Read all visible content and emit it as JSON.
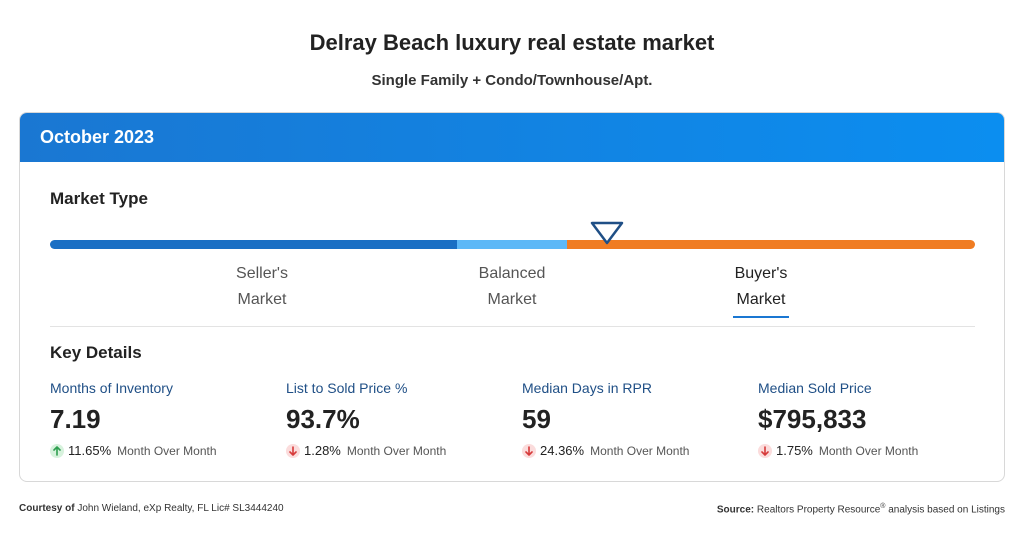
{
  "title": "Delray Beach luxury real estate market",
  "subtitle": "Single Family + Condo/Townhouse/Apt.",
  "period": "October 2023",
  "market_type": {
    "heading": "Market Type",
    "labels": {
      "seller_line1": "Seller's",
      "seller_line2": "Market",
      "balanced_line1": "Balanced",
      "balanced_line2": "Market",
      "buyer_line1": "Buyer's",
      "buyer_line2": "Market"
    },
    "selected": "Buyer's Market",
    "colors": {
      "seller": "#1a6fc4",
      "balanced": "#5db8f7",
      "buyer": "#f07c22"
    }
  },
  "key_details": {
    "heading": "Key Details",
    "stats": [
      {
        "label": "Months of Inventory",
        "value": "7.19",
        "change": "11.65%",
        "direction": "up",
        "period": "Month Over Month"
      },
      {
        "label": "List to Sold Price %",
        "value": "93.7%",
        "change": "1.28%",
        "direction": "down",
        "period": "Month Over Month"
      },
      {
        "label": "Median Days in RPR",
        "value": "59",
        "change": "24.36%",
        "direction": "down",
        "period": "Month Over Month"
      },
      {
        "label": "Median Sold Price",
        "value": "$795,833",
        "change": "1.75%",
        "direction": "down",
        "period": "Month Over Month"
      }
    ]
  },
  "footer": {
    "courtesy_label": "Courtesy of",
    "courtesy_text": "John Wieland, eXp Realty, FL Lic# SL3444240",
    "source_label": "Source:",
    "source_text_1": "Realtors Property Resource",
    "source_sup": "®",
    "source_text_2": "analysis based on Listings"
  }
}
